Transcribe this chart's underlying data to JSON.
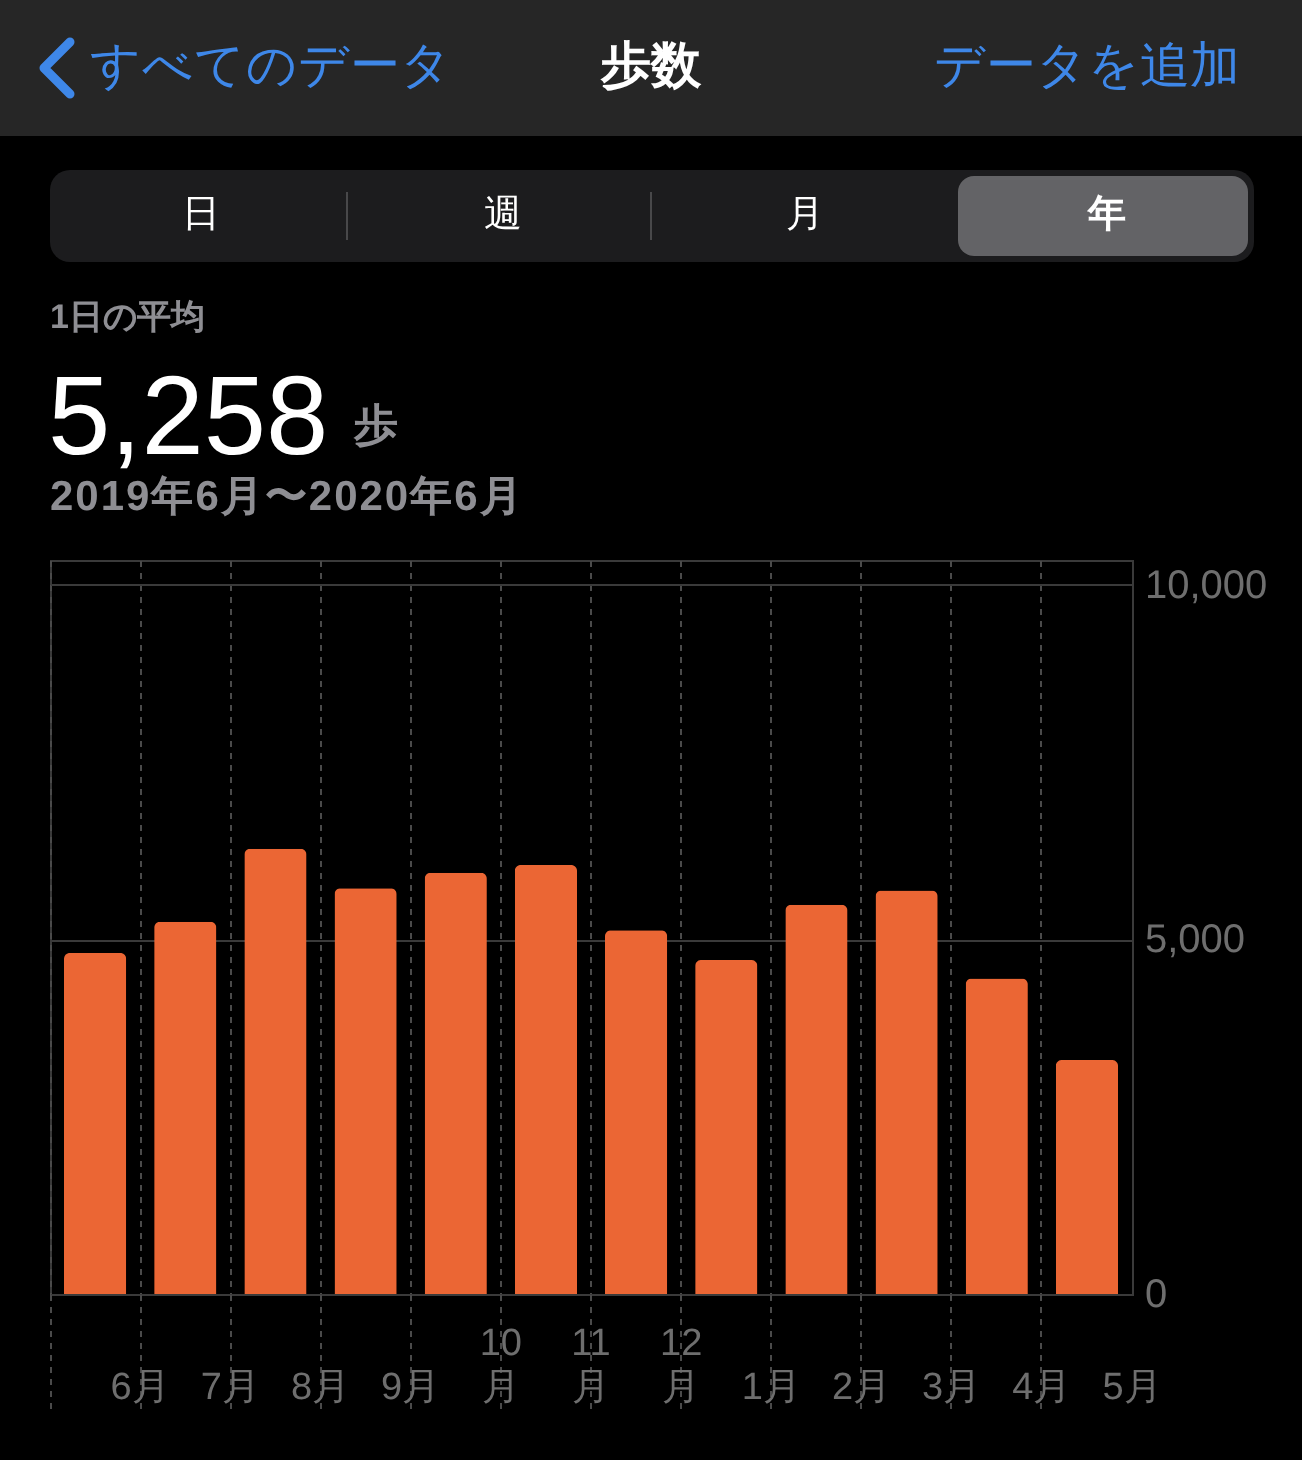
{
  "chart_data": {
    "type": "bar",
    "title": "歩数",
    "subtitle": "2019年6月〜2020年6月",
    "annotations": [
      "すべてのデータ",
      "データを追加",
      "日",
      "週",
      "月",
      "年",
      "1日の平均",
      "5,258",
      "歩"
    ],
    "categories": [
      "6月",
      "7月",
      "8月",
      "9月",
      "10月",
      "11月",
      "12月",
      "1月",
      "2月",
      "3月",
      "4月",
      "5月"
    ],
    "values": [
      4810,
      5250,
      6280,
      5720,
      5940,
      6050,
      5130,
      4710,
      5490,
      5690,
      4450,
      3300
    ],
    "color": "#eb6634",
    "ylim": [
      0,
      10350
    ],
    "yticks": [
      0,
      {
        "value": 5000,
        "label": "5,000"
      },
      {
        "value": 10000,
        "label": "10,000"
      }
    ],
    "grid": true
  }
}
